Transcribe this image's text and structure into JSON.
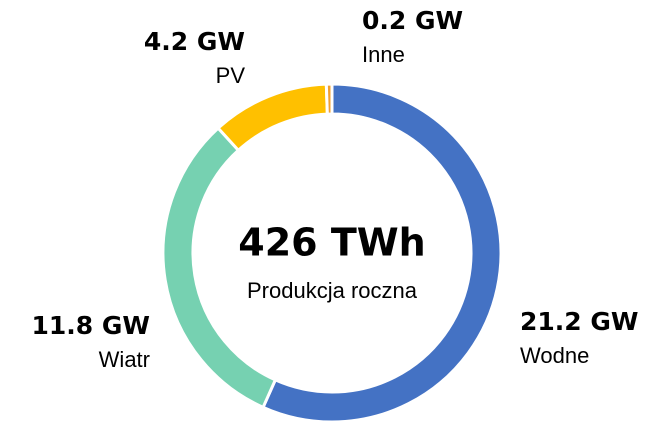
{
  "chart_data": {
    "type": "donut",
    "categories": [
      "Wodne",
      "Wiatr",
      "PV",
      "Inne"
    ],
    "values": [
      21.2,
      11.8,
      4.2,
      0.2
    ],
    "value_labels": [
      "21.2 GW",
      "11.8 GW",
      "4.2 GW",
      "0.2 GW"
    ],
    "colors": [
      "#4472c4",
      "#76d1b1",
      "#ffc000",
      "#f0a030"
    ],
    "center_title": "426 TWh",
    "center_subtitle": "Produkcja roczna"
  }
}
